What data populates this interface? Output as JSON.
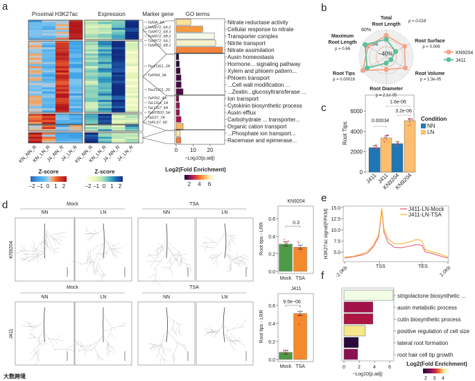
{
  "panel_labels": {
    "a": "a",
    "b": "b",
    "c": "c",
    "d": "d",
    "e": "e",
    "f": "f"
  },
  "watermark": "大数跨境",
  "colors": {
    "kn9204": "#f4a58a",
    "j411": "#5cc09a",
    "nn": "#1f77b4",
    "ln": "#fdbf6f",
    "mock_bar": "#4f9a48",
    "tsa_bar": "#f58a2c",
    "mock_line": "#e8607a",
    "tsa_line": "#f5b531"
  },
  "chart_data": [
    {
      "panel": "a",
      "type": "heatmap",
      "titles": {
        "h3k27ac": "Proximal H3K27ac",
        "expression": "Expression",
        "marker": "Marker gene",
        "go": "GO terms"
      },
      "columns": [
        "KN_NN_R",
        "KN_LN_R",
        "J4_NN_R",
        "J4_LN_R"
      ],
      "groups": [
        {
          "rows": 10,
          "h3k27ac": [
            -0.8,
            -0.5,
            0.2,
            2.0
          ],
          "expression": [
            -0.6,
            -0.2,
            0.6,
            2.2
          ]
        },
        {
          "rows": 34,
          "h3k27ac": [
            0.0,
            -0.6,
            1.6,
            -0.8
          ],
          "expression": [
            -0.3,
            0.7,
            1.9,
            -1.3
          ]
        },
        {
          "rows": 5,
          "h3k27ac": [
            0.8,
            1.6,
            -0.6,
            -0.8
          ],
          "expression": [
            0.3,
            2.0,
            -0.6,
            -0.5
          ]
        },
        {
          "rows": 3,
          "h3k27ac": [
            -0.2,
            0.9,
            -0.6,
            0.1
          ],
          "expression": [
            -0.4,
            0.3,
            -0.8,
            0.7
          ]
        },
        {
          "rows": 5,
          "h3k27ac": [
            1.8,
            0.3,
            -0.6,
            -0.7
          ],
          "expression": [
            2.0,
            0.3,
            -0.7,
            -0.6
          ]
        }
      ],
      "legend_h3k27ac": {
        "title": "Z-score",
        "ticks": [
          "−2",
          "−1",
          "0",
          "1",
          "2"
        ]
      },
      "legend_expression": {
        "title": "Z-score",
        "ticks": [
          "−2",
          "−1",
          "0",
          "1",
          "2"
        ]
      },
      "marker_genes": [
        "TaNIA_6A",
        "TaNRT2_6A.2",
        "TaNRT2_6B.3",
        "TaNRT2_6B.2",
        "TaNRT2_5A.1",
        "TaNRT2_6B.1",
        "TacZOG1_2A",
        "TaPIN4_3A",
        "TacZOG1_2D",
        "TaPIN1_4A",
        "TaLOG4_1A",
        "TaLOG7_4A",
        "TaMYB20_5A",
        "TaD27_7A",
        "TaPLS7_6D"
      ]
    },
    {
      "panel": "a",
      "type": "bar",
      "orientation": "horizontal",
      "xlabel": "−Log10(p.adj)",
      "xticks": [
        "0",
        "10",
        "20"
      ],
      "xlim": [
        0,
        29
      ],
      "legend": {
        "title": "Log2(Fold Enrichment)",
        "ticks": [
          "2",
          "4",
          "6"
        ]
      },
      "terms": [
        "Nitrate reductase activity",
        "Cellular response to nitrate",
        "Transporter complex",
        "Nitrite transport",
        "Nitrate assimilation",
        "Auxin homeostasis",
        "Hormone... signaling pathway",
        "Xylem and phloem pattern...",
        "Phloem transport",
        "...Cell wall modification ...",
        "...Zeatin...glucosyltransferase ...",
        "Ion transport",
        "Cytokinin biosynthetic process",
        "Auxin efflux",
        "Carbohydrate ... transporter...",
        "Organic cation transport",
        "...Phosphate ion transport...",
        "Racemase and epimerase..."
      ],
      "values": [
        8.6,
        15.6,
        22.5,
        23.3,
        27.3,
        1.6,
        1.9,
        2.4,
        2.9,
        3.0,
        4.1,
        1.6,
        2.0,
        2.0,
        2.9,
        4.1,
        2.4,
        2.8
      ],
      "log2_fold_enrichment": [
        6.0,
        5.0,
        7.0,
        6.6,
        4.7,
        2.0,
        2.0,
        2.1,
        2.2,
        2.2,
        2.3,
        2.6,
        2.8,
        2.9,
        3.0,
        5.4,
        6.2,
        4.6
      ]
    },
    {
      "panel": "b",
      "type": "radar",
      "axes": [
        {
          "name": "Total Root Length",
          "p": "p = 0.018"
        },
        {
          "name": "Root Surface",
          "p": "p = 0.006"
        },
        {
          "name": "Root Volume",
          "p": "p = 1.3e-05"
        },
        {
          "name": "Root Diameter",
          "p": "p = 2.1e-05"
        },
        {
          "name": "Root Tips",
          "p": "p = 0.00016"
        },
        {
          "name": "Maximum Root Length",
          "p": "p = 0.66"
        }
      ],
      "axis_lines": {
        "total_root": [
          "Total",
          "Root Length"
        ],
        "max_root": [
          "Maximum",
          "Root Length"
        ]
      },
      "rings": [
        "60%",
        "0%",
        "−40%"
      ],
      "range": [
        -100,
        60
      ],
      "series": [
        {
          "name": "KN9204",
          "values": [
            27,
            25,
            30,
            -25,
            60,
            25
          ]
        },
        {
          "name": "J411",
          "values": [
            4,
            -36,
            -68,
            -63,
            31,
            44
          ]
        }
      ]
    },
    {
      "panel": "c",
      "type": "bar",
      "ylabel": "Root Tips",
      "ylim": [
        0,
        7500
      ],
      "yticks": [
        "0",
        "2000",
        "4000",
        "6000"
      ],
      "categories": [
        "J411",
        "J411",
        "KN9204",
        "KN9204"
      ],
      "conditions": [
        "NN",
        "LN",
        "NN",
        "LN"
      ],
      "values": [
        2400,
        3350,
        2800,
        5050
      ],
      "legend": {
        "title": "Condition",
        "items": [
          "NN",
          "LN"
        ]
      },
      "pvalues": [
        "0.00034",
        "1.6e-06",
        "3.2e-06"
      ]
    },
    {
      "panel": "d",
      "type": "image-grid",
      "groups": [
        "Mock",
        "TSA"
      ],
      "conditions": [
        "NN",
        "LN"
      ],
      "rows": [
        "KN9204",
        "J411"
      ]
    },
    {
      "panel": "d",
      "type": "bar",
      "title": "KN9204",
      "ylabel": "Root tips - LRR",
      "categories": [
        "Mock",
        "TSA"
      ],
      "values": [
        0.31,
        0.275
      ],
      "ylim": [
        0,
        0.75
      ],
      "yticks": [
        "0.0",
        "0.2",
        "0.4",
        "0.6"
      ],
      "pvalue": "0.3"
    },
    {
      "panel": "d",
      "type": "bar",
      "title": "J411",
      "ylabel": "Root tips - LRR",
      "categories": [
        "Mock",
        "TSA"
      ],
      "values": [
        0.08,
        0.51
      ],
      "ylim": [
        0,
        0.75
      ],
      "yticks": [
        "0.0",
        "0.2",
        "0.4",
        "0.6"
      ],
      "pvalue": "9.5e−06"
    },
    {
      "panel": "e",
      "type": "line",
      "ylabel": "H3K27ac signal(FPKM)",
      "ylim": [
        2.85,
        15.3
      ],
      "yticks": [
        "5.0",
        "7.5",
        "10.0",
        "12.5",
        "15.0"
      ],
      "xticks": [
        "-2.0Kb",
        "TSS",
        "TES",
        "2.0Kb"
      ],
      "x": [
        0,
        8,
        15,
        22,
        28,
        33,
        36,
        38,
        42,
        48,
        55,
        62,
        68,
        72,
        75,
        78,
        85,
        92,
        100
      ],
      "series": [
        {
          "name": "J411-LN-Mock",
          "values": [
            3.7,
            3.9,
            4.2,
            4.8,
            6.2,
            8.5,
            14.5,
            9.5,
            7.2,
            6.1,
            5.9,
            6.2,
            6.6,
            6.6,
            6.4,
            5.0,
            4.6,
            4.2,
            3.7
          ]
        },
        {
          "name": "J411-LN-TSA",
          "values": [
            3.9,
            4.1,
            4.4,
            5.1,
            6.6,
            9.0,
            14.8,
            10.2,
            7.9,
            6.9,
            6.8,
            7.2,
            7.7,
            7.7,
            7.5,
            5.6,
            5.0,
            4.5,
            3.9
          ]
        }
      ]
    },
    {
      "panel": "f",
      "type": "bar",
      "orientation": "horizontal",
      "xlabel": "−Log10(p.adj)",
      "xticks": [
        "0",
        "2",
        "4",
        "6"
      ],
      "xlim": [
        0,
        6.8
      ],
      "terms": [
        "strigolactone biosynthetic ...",
        "auxin metabolic process",
        "cutin biosynthetic process",
        "positive regulation of cell size",
        "lateral root formation",
        "root hair cell tip growth"
      ],
      "values": [
        6.45,
        3.8,
        3.8,
        2.8,
        1.9,
        1.8
      ],
      "log2_fold_enrichment": [
        4.6,
        2.8,
        2.9,
        4.1,
        2.0,
        2.6
      ],
      "legend": {
        "title": "Log2(Fold Enrichment)",
        "ticks": [
          "2",
          "3",
          "4"
        ]
      }
    }
  ]
}
